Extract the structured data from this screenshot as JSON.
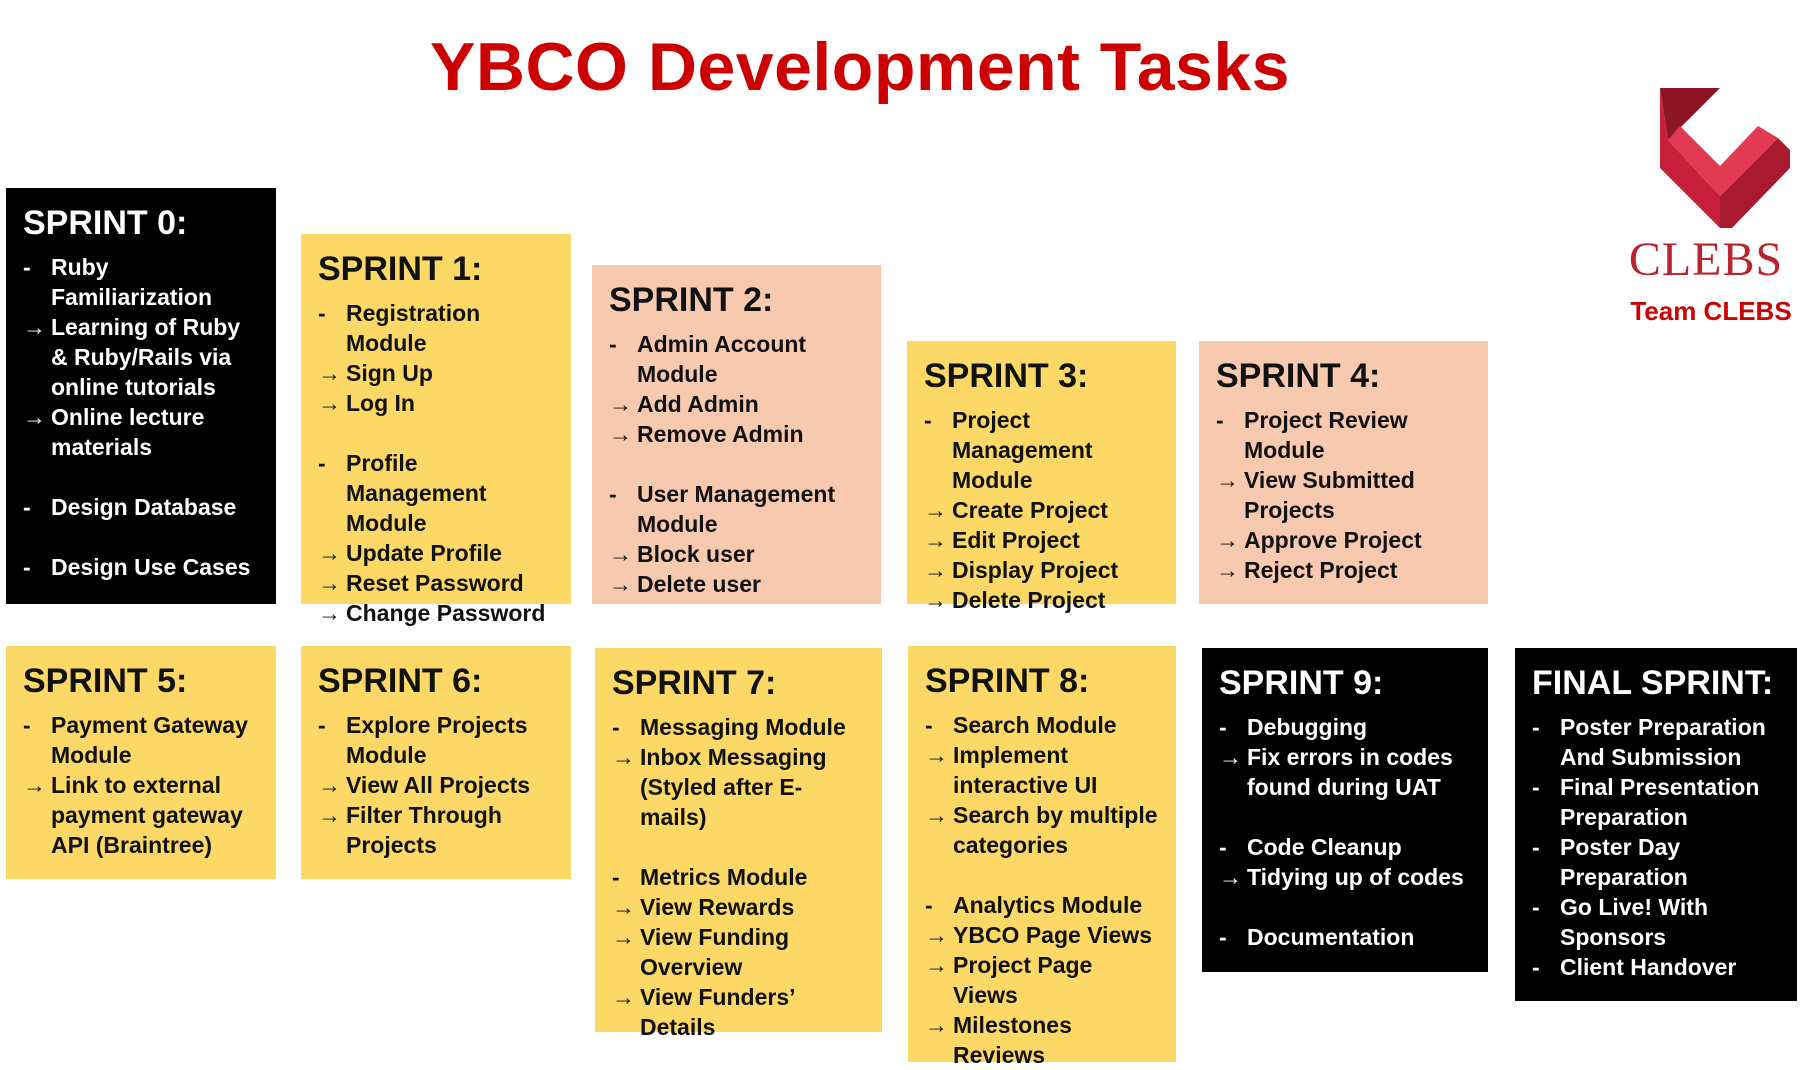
{
  "title": "YBCO Development Tasks",
  "logo": {
    "wordmark": "CLEBS",
    "team": "Team CLEBS",
    "color": "#c8203a"
  },
  "colors": {
    "title": "#cc0000",
    "black": "#000000",
    "yellow": "#fcd866",
    "peach": "#f7c9ae"
  },
  "sprints": [
    {
      "id": "s0",
      "title": "SPRINT 0:",
      "lines": [
        {
          "m": "-",
          "t": "Ruby Familiarization"
        },
        {
          "m": "→",
          "t": "Learning of Ruby & Ruby/Rails via online tutorials"
        },
        {
          "m": "→",
          "t": "Online lecture materials"
        },
        {
          "gap": true
        },
        {
          "m": "-",
          "t": "Design Database"
        },
        {
          "gap": true
        },
        {
          "m": "-",
          "t": "Design Use Cases"
        }
      ]
    },
    {
      "id": "s1",
      "title": "SPRINT 1:",
      "lines": [
        {
          "m": "-",
          "t": "Registration Module"
        },
        {
          "m": "→",
          "t": "Sign Up"
        },
        {
          "m": "→",
          "t": "Log In"
        },
        {
          "gap": true
        },
        {
          "m": "-",
          "t": "Profile Management Module"
        },
        {
          "m": "→",
          "t": "Update Profile"
        },
        {
          "m": "→",
          "t": "Reset Password"
        },
        {
          "m": "→",
          "t": "Change Password"
        }
      ]
    },
    {
      "id": "s2",
      "title": "SPRINT 2:",
      "lines": [
        {
          "m": "-",
          "t": "Admin Account Module"
        },
        {
          "m": "→",
          "t": "Add Admin"
        },
        {
          "m": "→",
          "t": "Remove Admin"
        },
        {
          "gap": true
        },
        {
          "m": "-",
          "t": "User Management Module"
        },
        {
          "m": "→",
          "t": "Block user"
        },
        {
          "m": "→",
          "t": "Delete user"
        }
      ]
    },
    {
      "id": "s3",
      "title": "SPRINT 3:",
      "lines": [
        {
          "m": "-",
          "t": "Project Management Module"
        },
        {
          "m": "→",
          "t": "Create Project"
        },
        {
          "m": "→",
          "t": "Edit Project"
        },
        {
          "m": "→",
          "t": "Display Project"
        },
        {
          "m": "→",
          "t": "Delete Project"
        }
      ]
    },
    {
      "id": "s4",
      "title": "SPRINT 4:",
      "lines": [
        {
          "m": "-",
          "t": "Project Review Module"
        },
        {
          "m": "→",
          "t": "View Submitted Projects"
        },
        {
          "m": "→",
          "t": "Approve Project"
        },
        {
          "m": "→",
          "t": "Reject Project"
        }
      ]
    },
    {
      "id": "s5",
      "title": "SPRINT 5:",
      "lines": [
        {
          "m": "-",
          "t": "Payment Gateway Module"
        },
        {
          "m": "→",
          "t": "Link to external payment gateway API (Braintree)"
        }
      ]
    },
    {
      "id": "s6",
      "title": "SPRINT 6:",
      "lines": [
        {
          "m": "-",
          "t": "Explore Projects Module"
        },
        {
          "m": "→",
          "t": "View All Projects"
        },
        {
          "m": "→",
          "t": "Filter Through Projects"
        }
      ]
    },
    {
      "id": "s7",
      "title": "SPRINT 7:",
      "lines": [
        {
          "m": "-",
          "t": "Messaging Module"
        },
        {
          "m": "→",
          "t": "Inbox Messaging (Styled after E-mails)"
        },
        {
          "gap": true
        },
        {
          "m": "-",
          "t": "Metrics Module"
        },
        {
          "m": "→",
          "t": "View Rewards"
        },
        {
          "m": "→",
          "t": "View Funding Overview"
        },
        {
          "m": "→",
          "t": "View Funders’ Details"
        }
      ]
    },
    {
      "id": "s8",
      "title": "SPRINT 8:",
      "lines": [
        {
          "m": "-",
          "t": "Search Module"
        },
        {
          "m": "→",
          "t": "Implement interactive UI"
        },
        {
          "m": "→",
          "t": "Search by multiple categories"
        },
        {
          "gap": true
        },
        {
          "m": "-",
          "t": "Analytics Module"
        },
        {
          "m": "→",
          "t": "YBCO Page Views"
        },
        {
          "m": "→",
          "t": "Project Page Views"
        },
        {
          "m": "→",
          "t": "Milestones Reviews"
        }
      ]
    },
    {
      "id": "s9",
      "title": "SPRINT 9:",
      "lines": [
        {
          "m": "-",
          "t": "Debugging"
        },
        {
          "m": "→",
          "t": "Fix errors in codes found during UAT"
        },
        {
          "gap": true
        },
        {
          "m": "-",
          "t": "Code Cleanup"
        },
        {
          "m": "→",
          "t": "Tidying up of codes"
        },
        {
          "gap": true
        },
        {
          "m": "-",
          "t": "Documentation"
        }
      ]
    },
    {
      "id": "final",
      "title": "FINAL SPRINT:",
      "lines": [
        {
          "m": "-",
          "t": "Poster Preparation And Submission"
        },
        {
          "m": "-",
          "t": "Final Presentation Preparation"
        },
        {
          "m": "-",
          "t": "Poster Day Preparation"
        },
        {
          "m": "-",
          "t": "Go Live! With Sponsors"
        },
        {
          "m": "-",
          "t": "Client Handover"
        }
      ]
    }
  ]
}
